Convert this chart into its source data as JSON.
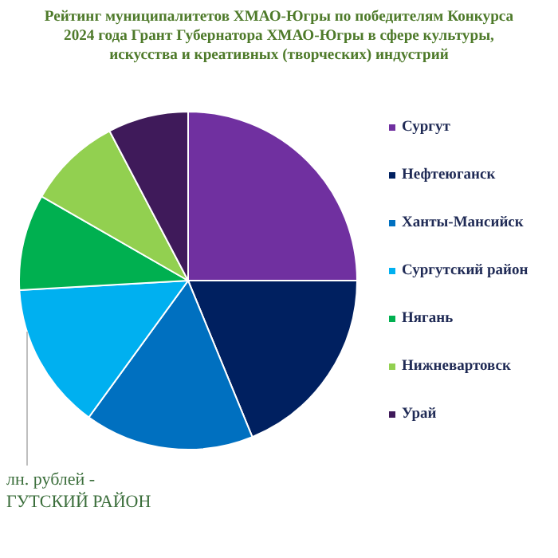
{
  "chart_data": {
    "type": "pie",
    "title": "Рейтинг муниципалитетов ХМАО-Югры по победителям Конкурса 2024 года Грант Губернатора ХМАО-Югры в сфере культуры, искусства и креативных (творческих) индустрий",
    "categories": [
      "Сургут",
      "Нефтеюганск",
      "Ханты-Мансийск",
      "Сургутский район",
      "Нягань",
      "Нижневартовск",
      "Урай"
    ],
    "values": [
      25,
      18.8,
      16.2,
      14.1,
      9.2,
      9,
      7.7
    ],
    "colors": [
      "#7030a0",
      "#002060",
      "#0070c0",
      "#00b0f0",
      "#00b050",
      "#92d050",
      "#3f1a5a"
    ],
    "legend": "right",
    "annotations": [
      "лн. рублей - ГУТСКИЙ РАЙОН"
    ]
  }
}
